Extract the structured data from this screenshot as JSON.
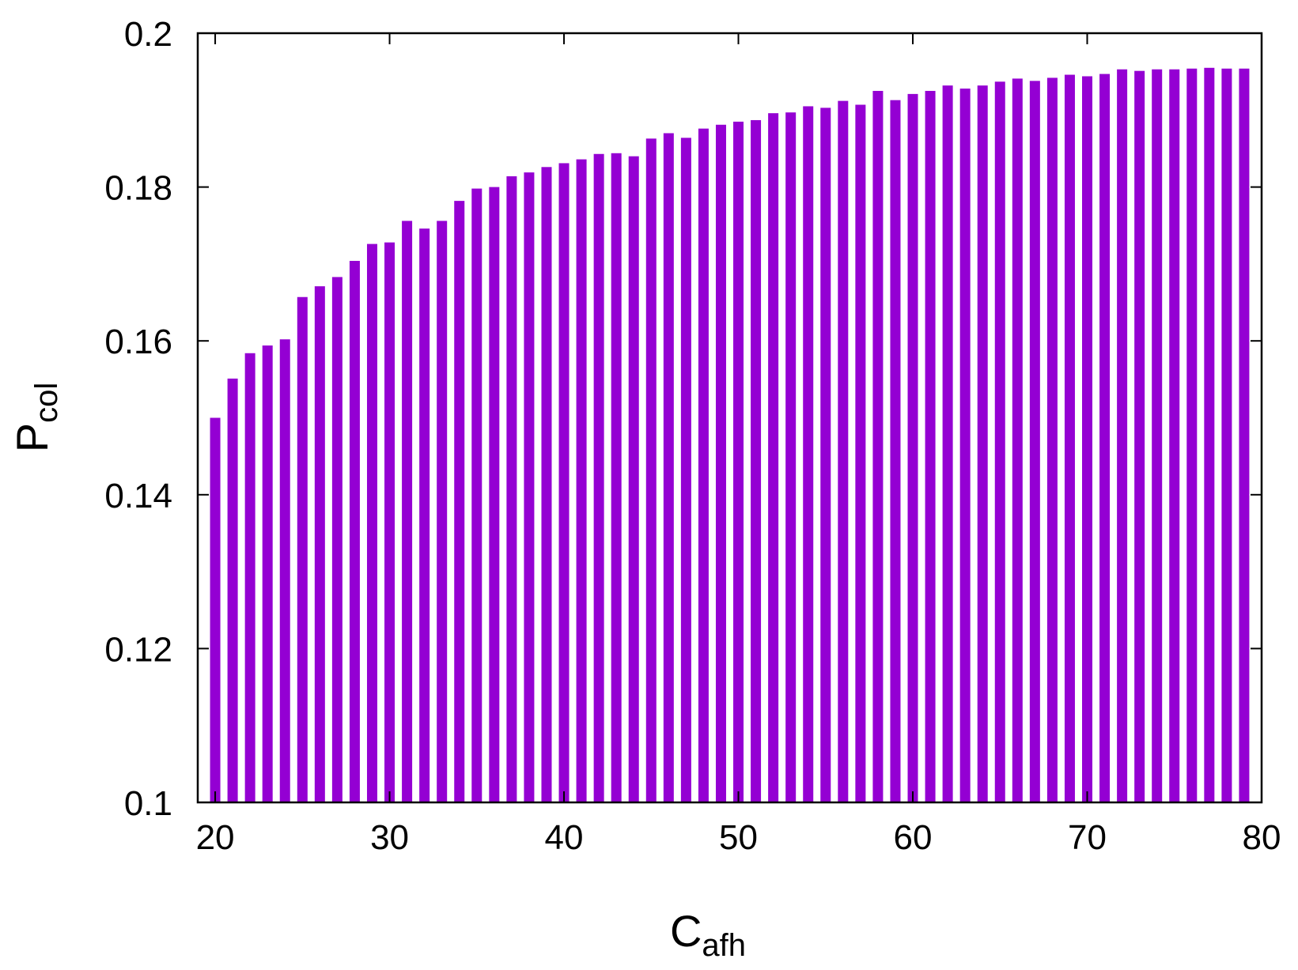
{
  "chart_data": {
    "type": "bar",
    "xlabel_main": "C",
    "xlabel_sub": "afh",
    "ylabel_main": "P",
    "ylabel_sub": "col",
    "xlim": [
      19,
      80
    ],
    "ylim": [
      0.1,
      0.2
    ],
    "xticks": [
      "20",
      "30",
      "40",
      "50",
      "60",
      "70",
      "80"
    ],
    "yticks": [
      "0.1",
      "0.12",
      "0.14",
      "0.16",
      "0.18",
      "0.2"
    ],
    "bar_color": "#9400D3",
    "x": [
      20,
      21,
      22,
      23,
      24,
      25,
      26,
      27,
      28,
      29,
      30,
      31,
      32,
      33,
      34,
      35,
      36,
      37,
      38,
      39,
      40,
      41,
      42,
      43,
      44,
      45,
      46,
      47,
      48,
      49,
      50,
      51,
      52,
      53,
      54,
      55,
      56,
      57,
      58,
      59,
      60,
      61,
      62,
      63,
      64,
      65,
      66,
      67,
      68,
      69,
      70,
      71,
      72,
      73,
      74,
      75,
      76,
      77,
      78,
      79
    ],
    "values": [
      0.15,
      0.1551,
      0.1584,
      0.1594,
      0.1602,
      0.1657,
      0.1671,
      0.1683,
      0.1704,
      0.1726,
      0.1728,
      0.1756,
      0.1746,
      0.1756,
      0.1782,
      0.1798,
      0.18,
      0.1814,
      0.1819,
      0.1826,
      0.1831,
      0.1836,
      0.1843,
      0.1844,
      0.184,
      0.1863,
      0.187,
      0.1864,
      0.1876,
      0.1881,
      0.1885,
      0.1887,
      0.1896,
      0.1897,
      0.1905,
      0.1903,
      0.1912,
      0.1907,
      0.1925,
      0.1913,
      0.1921,
      0.1925,
      0.1932,
      0.1928,
      0.1932,
      0.1937,
      0.1941,
      0.1938,
      0.1942,
      0.1946,
      0.1944,
      0.1947,
      0.1953,
      0.1951,
      0.1953,
      0.1953,
      0.1954,
      0.1955,
      0.1954,
      0.1954
    ]
  }
}
